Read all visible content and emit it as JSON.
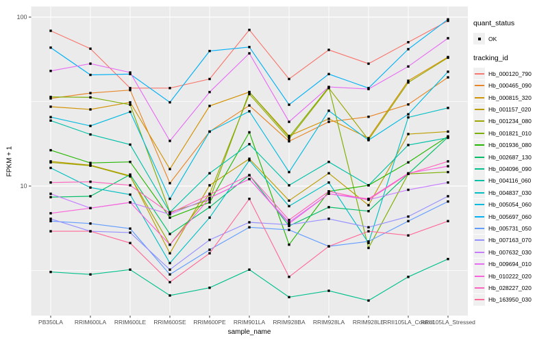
{
  "axes": {
    "x_title": "sample_name",
    "y_title": "FPKM + 1"
  },
  "legend": {
    "quant_status_title": "quant_status",
    "quant_status_items": [
      {
        "label": "OK",
        "marker": "black-point"
      }
    ],
    "tracking_id_title": "tracking_id"
  },
  "colors": {
    "panel_bg": "#EBEBEB",
    "grid": "#FFFFFF",
    "tick_label": "#4D4D4D",
    "axis_tick": "#333333",
    "legend_key_bg": "#F0F0F0",
    "point": "#000000"
  },
  "chart_data": {
    "type": "line",
    "title": "",
    "xlabel": "sample_name",
    "ylabel": "FPKM + 1",
    "y_scale": "log10",
    "grid": true,
    "legend_position": "right",
    "y_major_breaks": [
      10,
      100
    ],
    "y_minor_breaks": [
      3.162,
      31.623
    ],
    "y_tick_labels": [
      "10",
      "100"
    ],
    "ylim": [
      1.7,
      115
    ],
    "categories": [
      "PB350LA",
      "RRIM600LA",
      "RRIM600LE",
      "RRIM600SE",
      "RRIM600PE",
      "RRIM901LA",
      "RRIM928BA",
      "RRIM928LA",
      "RRIM928LE",
      "RRII105LA_Control",
      "RRII105LA_Stressed"
    ],
    "quant_status": "OK",
    "series": [
      {
        "name": "Hb_000120_790",
        "color": "#F8766D",
        "values": [
          83,
          65,
          38,
          38,
          43,
          84,
          43,
          64,
          53,
          71,
          95
        ]
      },
      {
        "name": "Hb_000465_090",
        "color": "#E88526",
        "values": [
          33,
          35.5,
          37,
          10.4,
          21,
          30,
          18.4,
          24,
          25.7,
          30.4,
          44
        ]
      },
      {
        "name": "Hb_000815_320",
        "color": "#D39200",
        "values": [
          29.5,
          28.4,
          31.3,
          12.6,
          29.8,
          36,
          19.8,
          25,
          19.2,
          42,
          58
        ]
      },
      {
        "name": "Hb_001157_020",
        "color": "#BB9D00",
        "values": [
          14,
          13.3,
          11.5,
          4.0,
          10.1,
          14.5,
          8.2,
          11.9,
          7.7,
          20.3,
          21
        ]
      },
      {
        "name": "Hb_001234_080",
        "color": "#9CA700",
        "values": [
          13.8,
          13.2,
          11.4,
          4.5,
          9.0,
          35,
          19,
          38,
          18.8,
          41,
          57.5
        ]
      },
      {
        "name": "Hb_001821_010",
        "color": "#7CAE00",
        "values": [
          33.7,
          33.5,
          30.3,
          7.0,
          8.3,
          36,
          19.5,
          38.5,
          4.3,
          11.8,
          12.1
        ]
      },
      {
        "name": "Hb_001936_080",
        "color": "#24B700",
        "values": [
          16.3,
          13.7,
          13.9,
          6.5,
          8.0,
          20.8,
          4.5,
          9.3,
          10.1,
          13.8,
          19.7
        ]
      },
      {
        "name": "Hb_002687_130",
        "color": "#00BE67",
        "values": [
          8.6,
          8.7,
          11.7,
          5.2,
          7.5,
          11.6,
          5.8,
          7.5,
          7.1,
          11.8,
          19.5
        ]
      },
      {
        "name": "Hb_004096_090",
        "color": "#00C08B",
        "values": [
          3.1,
          3.0,
          3.2,
          2.25,
          2.5,
          3.2,
          2.2,
          2.4,
          2.1,
          2.9,
          3.7
        ]
      },
      {
        "name": "Hb_004116_060",
        "color": "#00C1A7",
        "values": [
          24.4,
          20.2,
          17.6,
          7.0,
          11.9,
          17.7,
          10.1,
          13.9,
          10.1,
          17.5,
          19.3
        ]
      },
      {
        "name": "Hb_004837_030",
        "color": "#00BFC4",
        "values": [
          12.8,
          9.8,
          8.9,
          3.5,
          6.5,
          14.2,
          7.6,
          10.5,
          4.6,
          25.5,
          29
        ]
      },
      {
        "name": "Hb_005054_060",
        "color": "#00BAE0",
        "values": [
          25.6,
          22.7,
          27.5,
          8.4,
          21,
          27.7,
          12.1,
          27.9,
          18.7,
          26.6,
          47.5
        ]
      },
      {
        "name": "Hb_005697_060",
        "color": "#00B0F6",
        "values": [
          66,
          45.5,
          46,
          31.3,
          63,
          66.5,
          30.3,
          46,
          38,
          64.6,
          97
        ]
      },
      {
        "name": "Hb_005731_050",
        "color": "#619CFF",
        "values": [
          6.2,
          6.0,
          5.6,
          3.0,
          4.2,
          5.7,
          5.5,
          4.4,
          4.7,
          6.2,
          8.1
        ]
      },
      {
        "name": "Hb_007163_070",
        "color": "#9590FF",
        "values": [
          6.4,
          5.4,
          5.3,
          3.2,
          4.8,
          6.1,
          5.9,
          6.4,
          5.7,
          6.6,
          8.7
        ]
      },
      {
        "name": "Hb_007632_030",
        "color": "#C77CFF",
        "values": [
          9.0,
          7.4,
          8.0,
          6.8,
          8.5,
          11.0,
          6.1,
          9.0,
          8.3,
          9.5,
          10.5
        ]
      },
      {
        "name": "Hb_009694_010",
        "color": "#E76BF3",
        "values": [
          48,
          53,
          47,
          18.5,
          36,
          61,
          24,
          38.6,
          37.5,
          51,
          75
        ]
      },
      {
        "name": "Hb_010222_020",
        "color": "#FA62DB",
        "values": [
          6.9,
          7.4,
          8.0,
          4.5,
          8.5,
          11.0,
          6.0,
          9.0,
          8.4,
          11.9,
          13.1
        ]
      },
      {
        "name": "Hb_028227_020",
        "color": "#FF62BC",
        "values": [
          10.5,
          10.6,
          10.1,
          6.9,
          8.9,
          11.6,
          6.3,
          9.3,
          8.3,
          11.8,
          14.0
        ]
      },
      {
        "name": "Hb_163950_030",
        "color": "#FF6A98",
        "values": [
          5.4,
          5.4,
          4.6,
          2.7,
          4.0,
          8.4,
          2.9,
          4.4,
          5.4,
          5.1,
          6.2
        ]
      }
    ]
  }
}
